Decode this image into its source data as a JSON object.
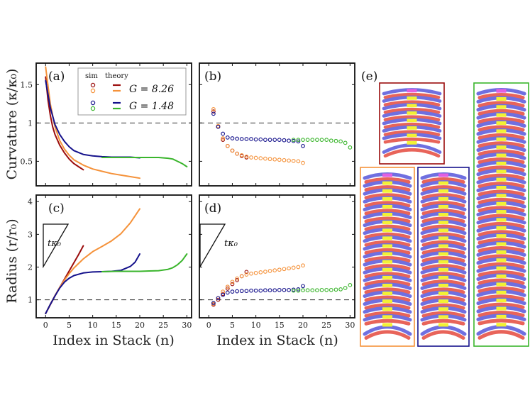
{
  "figure": {
    "panel_labels": [
      "(a)",
      "(b)",
      "(c)",
      "(d)",
      "(e)"
    ],
    "xlabel_left": "Index in Stack (n)",
    "xlabel_right": "Index in Stack (n)",
    "ylabel_top": "Curvature (κ/κ₀)",
    "ylabel_bottom": "Radius (r/r₀)",
    "slope_label": "tκ₀",
    "legend": {
      "col_sim": "sim",
      "col_theory": "theory",
      "row1": "G = 8.26",
      "row2": "G = 1.48"
    },
    "colors": {
      "dark_red": "#9b0d0d",
      "orange": "#f5923a",
      "navy": "#15128c",
      "green": "#3ab52c",
      "red_shell": "#e8645a",
      "blue_shell": "#6f6fe0",
      "yellow": "#f2f234",
      "magenta": "#e15fe1"
    }
  },
  "chart_data": [
    {
      "panel": "(a)",
      "type": "line",
      "xlabel": "",
      "ylabel": "Curvature (κ/κ₀)",
      "xlim": [
        -2,
        31
      ],
      "ylim": [
        0.18,
        1.78
      ],
      "xticks": [
        0,
        5,
        10,
        15,
        20,
        25,
        30
      ],
      "yticks": [
        0.5,
        1.0,
        1.5
      ],
      "reference_line": 1.0,
      "series": [
        {
          "name": "theory G=8.26 (red)",
          "color": "dark_red",
          "x": [
            0,
            0.5,
            1,
            1.5,
            2,
            3,
            4,
            5,
            6,
            7,
            8
          ],
          "y": [
            1.6,
            1.3,
            1.1,
            0.95,
            0.85,
            0.71,
            0.61,
            0.53,
            0.47,
            0.43,
            0.39
          ]
        },
        {
          "name": "theory G=8.26 (orange)",
          "color": "orange",
          "x": [
            0,
            1,
            2,
            3,
            4,
            5,
            6,
            8,
            10,
            12,
            14,
            16,
            18,
            20
          ],
          "y": [
            1.73,
            1.25,
            0.95,
            0.77,
            0.66,
            0.58,
            0.52,
            0.45,
            0.4,
            0.37,
            0.34,
            0.32,
            0.3,
            0.28
          ]
        },
        {
          "name": "theory G=1.48 (navy)",
          "color": "navy",
          "x": [
            0,
            1,
            2,
            3,
            4,
            5,
            6,
            8,
            10,
            12,
            14,
            16,
            18,
            20
          ],
          "y": [
            1.55,
            1.2,
            0.98,
            0.85,
            0.76,
            0.69,
            0.64,
            0.59,
            0.57,
            0.56,
            0.555,
            0.555,
            0.555,
            0.545
          ]
        },
        {
          "name": "theory G=1.48 (green)",
          "color": "green",
          "x": [
            12,
            15,
            18,
            20,
            22,
            24,
            26,
            27,
            28,
            29,
            30
          ],
          "y": [
            0.55,
            0.55,
            0.55,
            0.55,
            0.55,
            0.55,
            0.54,
            0.53,
            0.5,
            0.47,
            0.43
          ]
        }
      ]
    },
    {
      "panel": "(b)",
      "type": "scatter",
      "xlim": [
        -2,
        31
      ],
      "ylim": [
        0.18,
        1.78
      ],
      "xticks": [
        0,
        5,
        10,
        15,
        20,
        25,
        30
      ],
      "yticks": [
        0.5,
        1.0,
        1.5
      ],
      "reference_line": 1.0,
      "series": [
        {
          "name": "sim G=8.26 (red)",
          "color": "dark_red",
          "x": [
            1,
            2,
            3,
            4,
            5,
            6,
            7,
            8
          ],
          "y": [
            1.15,
            0.95,
            0.78,
            0.7,
            0.64,
            0.6,
            0.57,
            0.55
          ]
        },
        {
          "name": "sim G=8.26 (orange)",
          "color": "orange",
          "x": [
            1,
            2,
            3,
            4,
            5,
            6,
            7,
            8,
            9,
            10,
            11,
            12,
            13,
            14,
            15,
            16,
            17,
            18,
            19,
            20
          ],
          "y": [
            1.18,
            0.96,
            0.8,
            0.7,
            0.64,
            0.6,
            0.58,
            0.56,
            0.55,
            0.545,
            0.54,
            0.535,
            0.53,
            0.525,
            0.52,
            0.515,
            0.51,
            0.505,
            0.5,
            0.48
          ]
        },
        {
          "name": "sim G=1.48 (navy)",
          "color": "navy",
          "x": [
            1,
            2,
            3,
            4,
            5,
            6,
            7,
            8,
            9,
            10,
            11,
            12,
            13,
            14,
            15,
            16,
            17,
            18,
            19,
            20
          ],
          "y": [
            1.12,
            0.95,
            0.86,
            0.81,
            0.8,
            0.795,
            0.79,
            0.79,
            0.79,
            0.785,
            0.785,
            0.78,
            0.78,
            0.78,
            0.78,
            0.775,
            0.77,
            0.765,
            0.76,
            0.7
          ]
        },
        {
          "name": "sim G=1.48 (green)",
          "color": "green",
          "x": [
            18,
            19,
            20,
            21,
            22,
            23,
            24,
            25,
            26,
            27,
            28,
            29,
            30
          ],
          "y": [
            0.78,
            0.78,
            0.78,
            0.78,
            0.78,
            0.78,
            0.78,
            0.78,
            0.77,
            0.765,
            0.76,
            0.74,
            0.68
          ]
        }
      ]
    },
    {
      "panel": "(c)",
      "type": "line",
      "xlabel": "Index in Stack (n)",
      "ylabel": "Radius (r/r₀)",
      "xlim": [
        -2,
        31
      ],
      "ylim": [
        0.45,
        4.2
      ],
      "xticks": [
        0,
        5,
        10,
        15,
        20,
        25,
        30
      ],
      "yticks": [
        1,
        2,
        3,
        4
      ],
      "reference_line": 1.0,
      "series": [
        {
          "name": "theory G=8.26 (red)",
          "color": "dark_red",
          "x": [
            0,
            1,
            2,
            3,
            4,
            5,
            6,
            7,
            8
          ],
          "y": [
            0.58,
            0.85,
            1.12,
            1.38,
            1.63,
            1.88,
            2.13,
            2.38,
            2.65
          ]
        },
        {
          "name": "theory G=8.26 (orange)",
          "color": "orange",
          "x": [
            0,
            1,
            2,
            3,
            4,
            5,
            6,
            8,
            10,
            12,
            14,
            16,
            18,
            20
          ],
          "y": [
            0.58,
            0.86,
            1.13,
            1.38,
            1.6,
            1.8,
            1.97,
            2.25,
            2.47,
            2.63,
            2.8,
            3.02,
            3.35,
            3.78
          ]
        },
        {
          "name": "theory G=1.48 (navy)",
          "color": "navy",
          "x": [
            0,
            1,
            2,
            3,
            4,
            5,
            6,
            8,
            10,
            12,
            14,
            16,
            18,
            19,
            20
          ],
          "y": [
            0.58,
            0.86,
            1.12,
            1.36,
            1.54,
            1.66,
            1.74,
            1.82,
            1.85,
            1.86,
            1.87,
            1.9,
            2.02,
            2.15,
            2.4
          ]
        },
        {
          "name": "theory G=1.48 (green)",
          "color": "green",
          "x": [
            12,
            15,
            18,
            20,
            22,
            24,
            26,
            27,
            28,
            29,
            30
          ],
          "y": [
            1.86,
            1.87,
            1.87,
            1.87,
            1.88,
            1.89,
            1.93,
            1.98,
            2.07,
            2.2,
            2.4
          ]
        }
      ]
    },
    {
      "panel": "(d)",
      "type": "scatter",
      "xlabel": "Index in Stack (n)",
      "xlim": [
        -2,
        31
      ],
      "ylim": [
        0.45,
        4.2
      ],
      "xticks": [
        0,
        5,
        10,
        15,
        20,
        25,
        30
      ],
      "yticks": [
        1,
        2,
        3,
        4
      ],
      "reference_line": 1.0,
      "series": [
        {
          "name": "sim G=8.26 (red)",
          "color": "dark_red",
          "x": [
            1,
            2,
            3,
            4,
            5,
            6,
            7,
            8
          ],
          "y": [
            0.85,
            1.0,
            1.18,
            1.34,
            1.48,
            1.6,
            1.72,
            1.85
          ]
        },
        {
          "name": "sim G=8.26 (orange)",
          "color": "orange",
          "x": [
            1,
            2,
            3,
            4,
            5,
            6,
            7,
            8,
            9,
            10,
            11,
            12,
            13,
            14,
            15,
            16,
            17,
            18,
            19,
            20
          ],
          "y": [
            0.88,
            1.05,
            1.25,
            1.4,
            1.55,
            1.65,
            1.72,
            1.77,
            1.8,
            1.82,
            1.84,
            1.86,
            1.88,
            1.9,
            1.92,
            1.94,
            1.96,
            1.98,
            2.0,
            2.05
          ]
        },
        {
          "name": "sim G=1.48 (navy)",
          "color": "navy",
          "x": [
            1,
            2,
            3,
            4,
            5,
            6,
            7,
            8,
            9,
            10,
            11,
            12,
            13,
            14,
            15,
            16,
            17,
            18,
            19,
            20
          ],
          "y": [
            0.9,
            1.05,
            1.15,
            1.22,
            1.25,
            1.26,
            1.27,
            1.27,
            1.28,
            1.28,
            1.28,
            1.29,
            1.29,
            1.29,
            1.3,
            1.3,
            1.3,
            1.31,
            1.32,
            1.42
          ]
        },
        {
          "name": "sim G=1.48 (green)",
          "color": "green",
          "x": [
            18,
            19,
            20,
            21,
            22,
            23,
            24,
            25,
            26,
            27,
            28,
            29,
            30
          ],
          "y": [
            1.28,
            1.28,
            1.29,
            1.29,
            1.29,
            1.29,
            1.3,
            1.3,
            1.3,
            1.31,
            1.32,
            1.36,
            1.45
          ]
        }
      ]
    },
    {
      "panel": "(e)",
      "type": "illustration",
      "stacks": [
        {
          "name": "small",
          "frame_color": "dark_red",
          "shells": 8
        },
        {
          "name": "orange",
          "frame_color": "orange",
          "shells": 20
        },
        {
          "name": "navy",
          "frame_color": "navy",
          "shells": 20
        },
        {
          "name": "green",
          "frame_color": "green",
          "shells": 30
        }
      ]
    }
  ]
}
